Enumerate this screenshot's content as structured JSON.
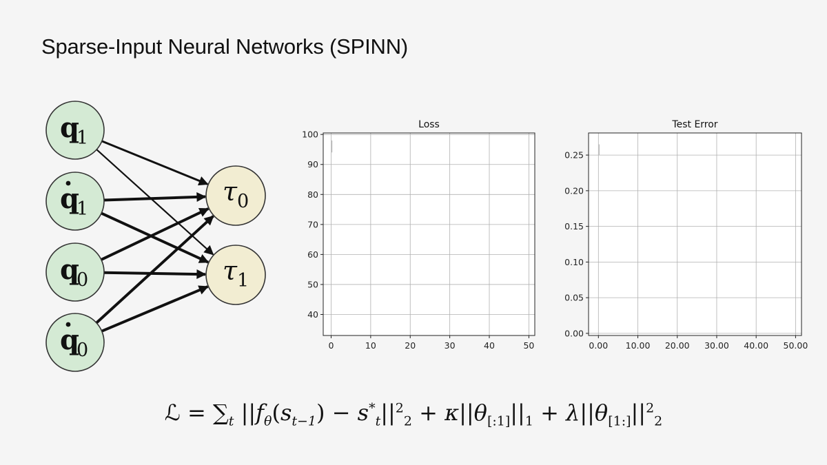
{
  "slide": {
    "title": "Sparse-Input Neural Networks (SPINN)"
  },
  "network": {
    "input_nodes": [
      {
        "id": "q1",
        "label": "q",
        "sub": "1",
        "dot": false
      },
      {
        "id": "qdot1",
        "label": "q",
        "sub": "1",
        "dot": true
      },
      {
        "id": "q0",
        "label": "q",
        "sub": "0",
        "dot": false
      },
      {
        "id": "qdot0",
        "label": "q",
        "sub": "0",
        "dot": true
      }
    ],
    "output_nodes": [
      {
        "id": "tau0",
        "label": "τ",
        "sub": "0"
      },
      {
        "id": "tau1",
        "label": "τ",
        "sub": "1"
      }
    ],
    "edges": [
      {
        "from": "q1",
        "to": "tau0",
        "weight": "medium"
      },
      {
        "from": "q1",
        "to": "tau1",
        "weight": "thin"
      },
      {
        "from": "qdot1",
        "to": "tau0",
        "weight": "thick"
      },
      {
        "from": "qdot1",
        "to": "tau1",
        "weight": "thick"
      },
      {
        "from": "q0",
        "to": "tau0",
        "weight": "thick"
      },
      {
        "from": "q0",
        "to": "tau1",
        "weight": "thick"
      },
      {
        "from": "qdot0",
        "to": "tau0",
        "weight": "thick"
      },
      {
        "from": "qdot0",
        "to": "tau1",
        "weight": "thick"
      }
    ],
    "colors": {
      "input_fill": "#d4ead4",
      "output_fill": "#f2edd2",
      "stroke": "#111111"
    }
  },
  "chart_data": [
    {
      "type": "line",
      "title": "Loss",
      "xlabel": "",
      "ylabel": "",
      "xlim": [
        -2,
        51.5
      ],
      "ylim": [
        33,
        100.5
      ],
      "xticks": [
        0,
        10,
        20,
        30,
        40,
        50
      ],
      "yticks": [
        40,
        50,
        60,
        70,
        80,
        90,
        100
      ],
      "tick_format": "int",
      "grid": true,
      "series": [
        {
          "x": [
            0.2,
            0.2
          ],
          "y": [
            98,
            94
          ],
          "color": "#bbbbbb"
        }
      ]
    },
    {
      "type": "line",
      "title": "Test Error",
      "xlabel": "",
      "ylabel": "",
      "xlim": [
        -2.5,
        51.5
      ],
      "ylim": [
        -0.003,
        0.281
      ],
      "xticks": [
        0,
        10,
        20,
        30,
        40,
        50
      ],
      "yticks": [
        0.0,
        0.05,
        0.1,
        0.15,
        0.2,
        0.25
      ],
      "tick_format": "2dp",
      "grid": true,
      "series": [
        {
          "x": [
            0.2,
            0.2
          ],
          "y": [
            0.265,
            0.25
          ],
          "color": "#bbbbbb"
        }
      ]
    }
  ],
  "formula": {
    "L": "ℒ",
    "eq": "=",
    "sum": "∑",
    "sum_sub": "t",
    "norm_bar": "||",
    "f": "f",
    "theta": "θ",
    "paren_open": "(",
    "s": "s",
    "s_sub": "t−1",
    "paren_close": ")",
    "minus": "−",
    "s_star_sub": "t",
    "s_star_sup": "*",
    "two": "2",
    "plus": "+",
    "kappa": "κ",
    "slice_a": "[:1]",
    "one": "1",
    "lambda": "λ",
    "slice_b": "[1:]"
  }
}
